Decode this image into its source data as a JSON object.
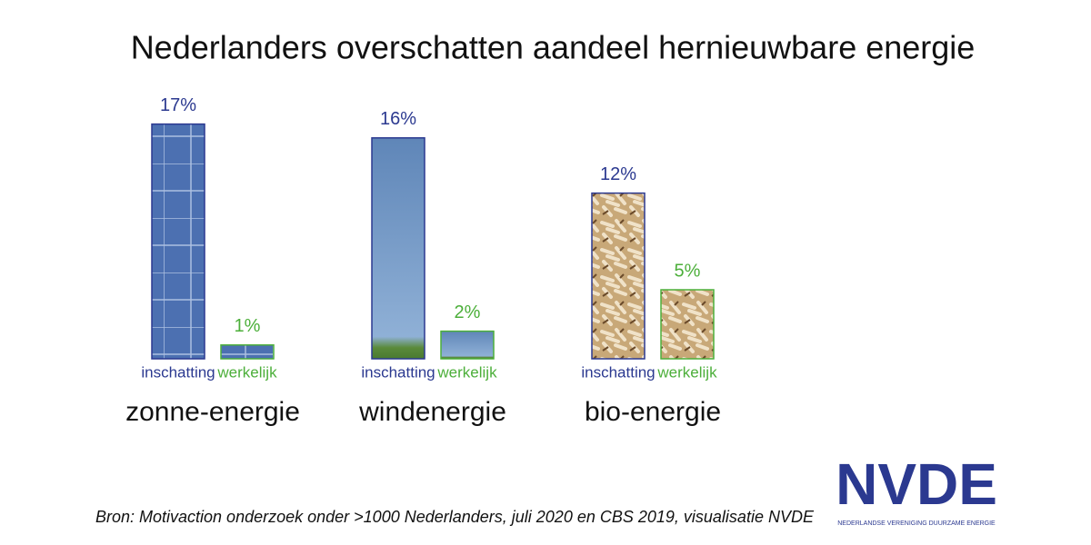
{
  "chart_data": {
    "type": "bar",
    "title": "Nederlanders overschatten aandeel hernieuwbare energie",
    "categories": [
      "zonne-energie",
      "windenergie",
      "bio-energie"
    ],
    "series": [
      {
        "name": "inschatting",
        "color": "#2b3990",
        "values": [
          17,
          16,
          12
        ],
        "value_labels": [
          "17%",
          "16%",
          "12%"
        ]
      },
      {
        "name": "werkelijk",
        "color": "#4caf3a",
        "values": [
          1,
          2,
          5
        ],
        "value_labels": [
          "1%",
          "2%",
          "5%"
        ]
      }
    ],
    "annotations": [
      "Bron: Motivaction onderzoek onder >1000 Nederlanders, juli 2020 en CBS 2019, visualisatie NVDE",
      "NVDE",
      "NEDERLANDSE VERENIGING DUURZAME ENERGIE"
    ]
  }
}
